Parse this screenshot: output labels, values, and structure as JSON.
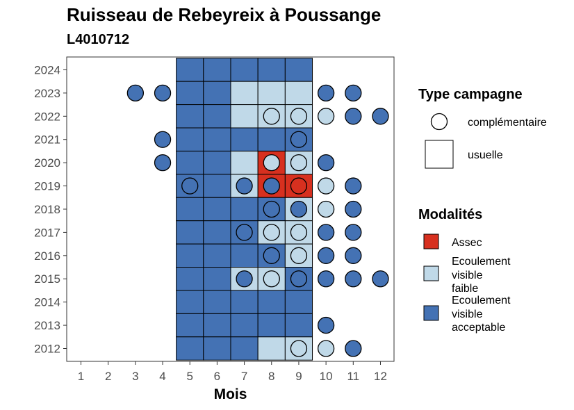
{
  "chart_data": {
    "type": "heatmap",
    "title": "Ruisseau de Rebeyreix à Poussange",
    "subtitle": "L4010712",
    "xlabel": "Mois",
    "ylabel": "",
    "x_ticks": [
      "1",
      "2",
      "3",
      "4",
      "5",
      "6",
      "7",
      "8",
      "9",
      "10",
      "11",
      "12"
    ],
    "y_ticks": [
      "2012",
      "2013",
      "2014",
      "2015",
      "2016",
      "2017",
      "2018",
      "2019",
      "2020",
      "2021",
      "2022",
      "2023",
      "2024"
    ],
    "grid": false,
    "legend_position": "right",
    "legends": [
      {
        "title": "Type campagne",
        "items": [
          {
            "key": "complementaire",
            "label": "complémentaire",
            "shape": "circle"
          },
          {
            "key": "usuelle",
            "label": "usuelle",
            "shape": "square"
          }
        ]
      },
      {
        "title": "Modalités",
        "items": [
          {
            "key": "assec",
            "label_lines": [
              "Assec"
            ],
            "color": "#d7301f"
          },
          {
            "key": "faible",
            "label_lines": [
              "Ecoulement",
              "visible",
              "faible"
            ],
            "color": "#c0d9e8"
          },
          {
            "key": "acceptable",
            "label_lines": [
              "Ecoulement",
              "visible",
              "acceptable"
            ],
            "color": "#4472b4"
          }
        ]
      }
    ],
    "colors": {
      "assec": "#d7301f",
      "faible": "#c0d9e8",
      "acceptable": "#4472b4"
    },
    "usuelle": [
      {
        "year": 2024,
        "values": [
          "acceptable",
          "acceptable",
          "acceptable",
          "acceptable",
          "acceptable"
        ]
      },
      {
        "year": 2023,
        "values": [
          "acceptable",
          "acceptable",
          "faible",
          "faible",
          "faible"
        ]
      },
      {
        "year": 2022,
        "values": [
          "acceptable",
          "acceptable",
          "faible",
          "faible",
          "faible"
        ]
      },
      {
        "year": 2021,
        "values": [
          "acceptable",
          "acceptable",
          "acceptable",
          "acceptable",
          "acceptable"
        ]
      },
      {
        "year": 2020,
        "values": [
          "acceptable",
          "acceptable",
          "faible",
          "assec",
          "faible"
        ]
      },
      {
        "year": 2019,
        "values": [
          "acceptable",
          "acceptable",
          "faible",
          "assec",
          "assec"
        ]
      },
      {
        "year": 2018,
        "values": [
          "acceptable",
          "acceptable",
          "acceptable",
          "acceptable",
          "faible"
        ]
      },
      {
        "year": 2017,
        "values": [
          "acceptable",
          "acceptable",
          "acceptable",
          "faible",
          "faible"
        ]
      },
      {
        "year": 2016,
        "values": [
          "acceptable",
          "acceptable",
          "acceptable",
          "acceptable",
          "faible"
        ]
      },
      {
        "year": 2015,
        "values": [
          "acceptable",
          "acceptable",
          "faible",
          "faible",
          "acceptable"
        ]
      },
      {
        "year": 2014,
        "values": [
          "acceptable",
          "acceptable",
          "acceptable",
          "acceptable",
          "acceptable"
        ]
      },
      {
        "year": 2013,
        "values": [
          "acceptable",
          "acceptable",
          "acceptable",
          "acceptable",
          "acceptable"
        ]
      },
      {
        "year": 2012,
        "values": [
          "acceptable",
          "acceptable",
          "acceptable",
          "faible",
          "faible"
        ]
      }
    ],
    "usuelle_months": [
      5,
      6,
      7,
      8,
      9
    ],
    "complementaire": [
      {
        "year": 2023,
        "month": 3,
        "value": "acceptable"
      },
      {
        "year": 2023,
        "month": 4,
        "value": "acceptable"
      },
      {
        "year": 2023,
        "month": 10,
        "value": "acceptable"
      },
      {
        "year": 2023,
        "month": 11,
        "value": "acceptable"
      },
      {
        "year": 2022,
        "month": 8,
        "value": "faible"
      },
      {
        "year": 2022,
        "month": 9,
        "value": "faible"
      },
      {
        "year": 2022,
        "month": 10,
        "value": "faible"
      },
      {
        "year": 2022,
        "month": 11,
        "value": "acceptable"
      },
      {
        "year": 2022,
        "month": 12,
        "value": "acceptable"
      },
      {
        "year": 2021,
        "month": 4,
        "value": "acceptable"
      },
      {
        "year": 2021,
        "month": 9,
        "value": "acceptable"
      },
      {
        "year": 2020,
        "month": 4,
        "value": "acceptable"
      },
      {
        "year": 2020,
        "month": 8,
        "value": "faible"
      },
      {
        "year": 2020,
        "month": 9,
        "value": "faible"
      },
      {
        "year": 2020,
        "month": 10,
        "value": "acceptable"
      },
      {
        "year": 2019,
        "month": 5,
        "value": "acceptable"
      },
      {
        "year": 2019,
        "month": 7,
        "value": "acceptable"
      },
      {
        "year": 2019,
        "month": 8,
        "value": "acceptable"
      },
      {
        "year": 2019,
        "month": 9,
        "value": "assec"
      },
      {
        "year": 2019,
        "month": 10,
        "value": "faible"
      },
      {
        "year": 2019,
        "month": 11,
        "value": "acceptable"
      },
      {
        "year": 2018,
        "month": 8,
        "value": "acceptable"
      },
      {
        "year": 2018,
        "month": 9,
        "value": "acceptable"
      },
      {
        "year": 2018,
        "month": 10,
        "value": "faible"
      },
      {
        "year": 2018,
        "month": 11,
        "value": "acceptable"
      },
      {
        "year": 2017,
        "month": 7,
        "value": "acceptable"
      },
      {
        "year": 2017,
        "month": 8,
        "value": "faible"
      },
      {
        "year": 2017,
        "month": 9,
        "value": "faible"
      },
      {
        "year": 2017,
        "month": 10,
        "value": "acceptable"
      },
      {
        "year": 2017,
        "month": 11,
        "value": "acceptable"
      },
      {
        "year": 2016,
        "month": 8,
        "value": "acceptable"
      },
      {
        "year": 2016,
        "month": 9,
        "value": "faible"
      },
      {
        "year": 2016,
        "month": 10,
        "value": "acceptable"
      },
      {
        "year": 2016,
        "month": 11,
        "value": "acceptable"
      },
      {
        "year": 2015,
        "month": 7,
        "value": "acceptable"
      },
      {
        "year": 2015,
        "month": 8,
        "value": "faible"
      },
      {
        "year": 2015,
        "month": 9,
        "value": "acceptable"
      },
      {
        "year": 2015,
        "month": 10,
        "value": "acceptable"
      },
      {
        "year": 2015,
        "month": 11,
        "value": "acceptable"
      },
      {
        "year": 2015,
        "month": 12,
        "value": "acceptable"
      },
      {
        "year": 2013,
        "month": 10,
        "value": "acceptable"
      },
      {
        "year": 2012,
        "month": 9,
        "value": "faible"
      },
      {
        "year": 2012,
        "month": 10,
        "value": "faible"
      },
      {
        "year": 2012,
        "month": 11,
        "value": "acceptable"
      }
    ]
  }
}
